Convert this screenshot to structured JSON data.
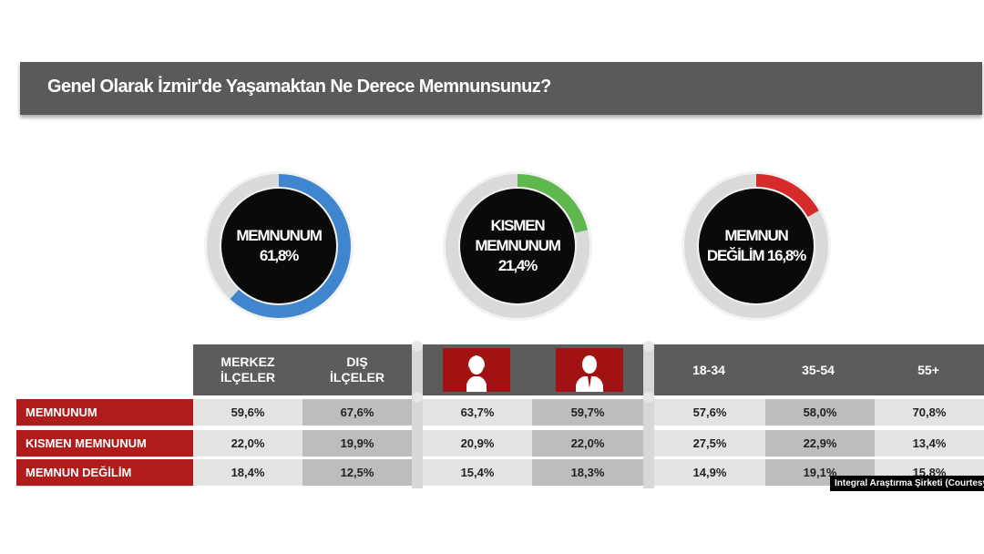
{
  "title": "Genel Olarak İzmir'de Yaşamaktan Ne Derece Memnunsunuz?",
  "colors": {
    "memnunum": "#3f86cf",
    "kismen": "#5fb84d",
    "degilim": "#d62b2b",
    "header": "#5c5c5c",
    "row_label": "#b01c1c"
  },
  "donuts": [
    {
      "line1": "MEMNUNUM",
      "line2": "61,8%",
      "value": 61.8,
      "color": "#3f86cf"
    },
    {
      "line1": "KISMEN",
      "line2": "MEMNUNUM",
      "line3": "21,4%",
      "value": 21.4,
      "color": "#5fb84d"
    },
    {
      "line1": "MEMNUN",
      "line2": "DEĞİLİM 16,8%",
      "value": 16.8,
      "color": "#d62b2b"
    }
  ],
  "table": {
    "headers": [
      {
        "line1": "MERKEZ",
        "line2": "İLÇELER"
      },
      {
        "line1": "DIŞ",
        "line2": "İLÇELER"
      },
      {
        "icon": "female-silhouette-icon"
      },
      {
        "icon": "male-silhouette-icon"
      },
      {
        "line1": "18-34"
      },
      {
        "line1": "35-54"
      },
      {
        "line1": "55+"
      }
    ],
    "rows": [
      {
        "label": "MEMNUNUM",
        "values": [
          "59,6%",
          "67,6%",
          "63,7%",
          "59,7%",
          "57,6%",
          "58,0%",
          "70,8%"
        ]
      },
      {
        "label": "KISMEN MEMNUNUM",
        "values": [
          "22,0%",
          "19,9%",
          "20,9%",
          "22,0%",
          "27,5%",
          "22,9%",
          "13,4%"
        ]
      },
      {
        "label": "MEMNUN DEĞİLİM",
        "values": [
          "18,4%",
          "12,5%",
          "15,4%",
          "18,3%",
          "14,9%",
          "19,1%",
          "15,8%"
        ]
      }
    ]
  },
  "credit": "Integral Araştırma Şirketi (Courtesy)",
  "chart_data": [
    {
      "type": "pie",
      "title": "Genel Olarak İzmir'de Yaşamaktan Ne Derece Memnunsunuz?",
      "categories": [
        "MEMNUNUM",
        "KISMEN MEMNUNUM",
        "MEMNUN DEĞİLİM"
      ],
      "values": [
        61.8,
        21.4,
        16.8
      ]
    },
    {
      "type": "table",
      "columns": [
        "MERKEZ İLÇELER",
        "DIŞ İLÇELER",
        "",
        "",
        "18-34",
        "35-54",
        "55+"
      ],
      "rows": [
        {
          "label": "MEMNUNUM",
          "values": [
            59.6,
            67.6,
            63.7,
            59.7,
            57.6,
            58.0,
            70.8
          ]
        },
        {
          "label": "KISMEN MEMNUNUM",
          "values": [
            22.0,
            19.9,
            20.9,
            22.0,
            27.5,
            22.9,
            13.4
          ]
        },
        {
          "label": "MEMNUN DEĞİLİM",
          "values": [
            18.4,
            12.5,
            15.4,
            18.3,
            14.9,
            19.1,
            15.8
          ]
        }
      ]
    }
  ]
}
